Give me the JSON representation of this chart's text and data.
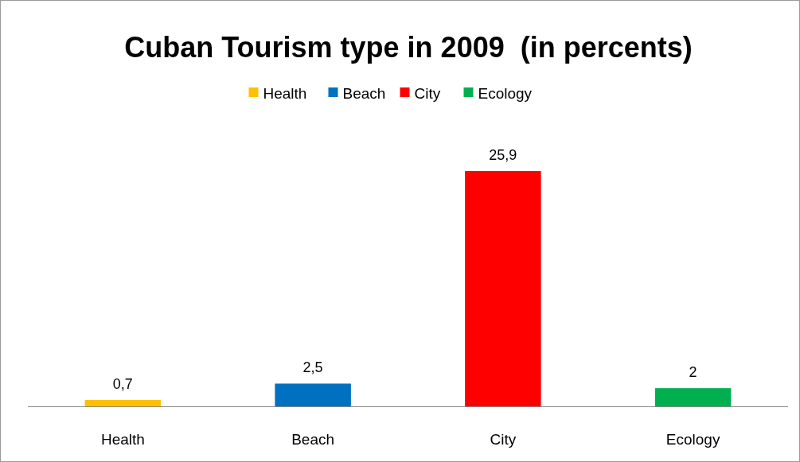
{
  "chart_data": {
    "type": "bar",
    "title": "Cuban Tourism type in 2009  (in percents)",
    "categories": [
      "Health",
      "Beach",
      "City",
      "Ecology"
    ],
    "stacked": true,
    "series": [
      {
        "name": "Health",
        "color": "#ffc000",
        "values": [
          0.7,
          null,
          null,
          null
        ],
        "value_labels": [
          "0,7",
          null,
          null,
          null
        ]
      },
      {
        "name": "Beach",
        "color": "#0070c0",
        "values": [
          null,
          2.5,
          null,
          null
        ],
        "value_labels": [
          null,
          "2,5",
          null,
          null
        ]
      },
      {
        "name": "City",
        "color": "#ff0000",
        "values": [
          null,
          null,
          25.9,
          null
        ],
        "value_labels": [
          null,
          null,
          "25,9",
          null
        ]
      },
      {
        "name": "Ecology",
        "color": "#00b050",
        "values": [
          null,
          null,
          null,
          2
        ],
        "value_labels": [
          null,
          null,
          null,
          "2"
        ]
      }
    ],
    "legend": "top"
  }
}
